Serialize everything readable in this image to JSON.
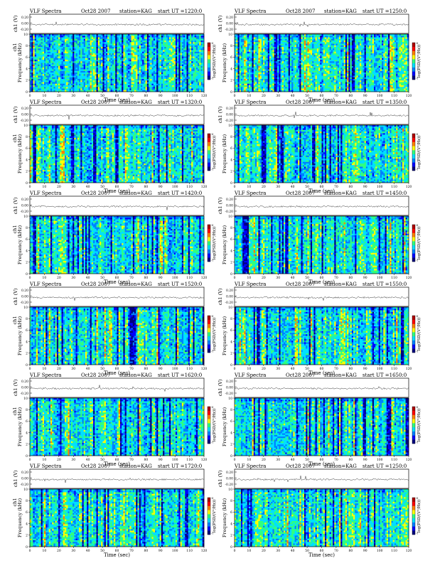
{
  "chart_data": [
    {
      "type": "heatmap",
      "title_prefix": "VLF Spectra",
      "date": "Oct28 2007",
      "station": "station=KAG",
      "start": "start  UT  =1220:0",
      "ch_label": "ch1 (V)",
      "ch_ticks": [
        "0.20",
        "0.00",
        "-0.20"
      ],
      "ylabel": "Frequency (kHz)",
      "ylabel_prefix": "ch1",
      "xlabel": "Time (sec)",
      "x_ticks": [
        "0",
        "10",
        "20",
        "30",
        "40",
        "50",
        "60",
        "70",
        "80",
        "90",
        "100",
        "110",
        "120"
      ],
      "y_ticks": [
        "0",
        "2",
        "4",
        "6",
        "8",
        "10"
      ],
      "xlim": [
        0,
        120
      ],
      "ylim": [
        0,
        10
      ],
      "colorbar_label": "log(PSD/(V²/Hz))",
      "colorbar_ticks": [
        "-6",
        "-7"
      ],
      "colormap": [
        "#00007f",
        "#0000ff",
        "#0080ff",
        "#00e0ff",
        "#30ff80",
        "#ffff00",
        "#ff8000",
        "#ff0000",
        "#b00000"
      ]
    },
    {
      "type": "heatmap",
      "title_prefix": "VLF Spectra",
      "date": "Oct28 2007",
      "station": "station=KAG",
      "start": "start  UT  =1250:0",
      "ch_label": "ch1 (V)",
      "ch_ticks": [
        "0.20",
        "0.00",
        "-0.20"
      ],
      "ylabel": "Frequency (kHz)",
      "ylabel_prefix": "",
      "xlabel": "Time (sec)",
      "x_ticks": [
        "0",
        "10",
        "20",
        "30",
        "40",
        "50",
        "60",
        "70",
        "80",
        "90",
        "100",
        "110",
        "120"
      ],
      "y_ticks": [
        "0",
        "2",
        "4",
        "6",
        "8",
        "10"
      ],
      "xlim": [
        0,
        120
      ],
      "ylim": [
        0,
        10
      ],
      "colorbar_label": "log(PSD/(V²/Hz))",
      "colorbar_ticks": [
        "-6",
        "-7"
      ],
      "colormap": [
        "#00007f",
        "#0000ff",
        "#0080ff",
        "#00e0ff",
        "#30ff80",
        "#ffff00",
        "#ff8000",
        "#ff0000",
        "#b00000"
      ]
    },
    {
      "type": "heatmap",
      "title_prefix": "VLF Spectra",
      "date": "Oct28 2007",
      "station": "station=KAG",
      "start": "start  UT  =1320:0",
      "ch_label": "ch1 (V)",
      "ch_ticks": [
        "0.20",
        "0.00",
        "-0.20"
      ],
      "ylabel": "Frequency (kHz)",
      "ylabel_prefix": "ch1",
      "xlabel": "Time (sec)",
      "x_ticks": [
        "0",
        "10",
        "20",
        "30",
        "40",
        "50",
        "60",
        "70",
        "80",
        "90",
        "100",
        "110",
        "120"
      ],
      "y_ticks": [
        "0",
        "2",
        "4",
        "6",
        "8",
        "10"
      ],
      "xlim": [
        0,
        120
      ],
      "ylim": [
        0,
        10
      ],
      "colorbar_label": "log(PSD/(V²/Hz))",
      "colorbar_ticks": [
        "-6",
        "-7"
      ],
      "colormap": [
        "#00007f",
        "#0000ff",
        "#0080ff",
        "#00e0ff",
        "#30ff80",
        "#ffff00",
        "#ff8000",
        "#ff0000",
        "#b00000"
      ]
    },
    {
      "type": "heatmap",
      "title_prefix": "VLF Spectra",
      "date": "Oct28 2007",
      "station": "station=KAG",
      "start": "start  UT  =1350:0",
      "ch_label": "ch1 (V)",
      "ch_ticks": [
        "0.20",
        "0.00",
        "-0.20"
      ],
      "ylabel": "Frequency (kHz)",
      "ylabel_prefix": "",
      "xlabel": "Time (sec)",
      "x_ticks": [
        "0",
        "10",
        "20",
        "30",
        "40",
        "50",
        "60",
        "70",
        "80",
        "90",
        "100",
        "110",
        "120"
      ],
      "y_ticks": [
        "0",
        "2",
        "4",
        "6",
        "8",
        "10"
      ],
      "xlim": [
        0,
        120
      ],
      "ylim": [
        0,
        10
      ],
      "colorbar_label": "log(PSD/(V²/Hz))",
      "colorbar_ticks": [
        "-6",
        "-7"
      ],
      "colormap": [
        "#00007f",
        "#0000ff",
        "#0080ff",
        "#00e0ff",
        "#30ff80",
        "#ffff00",
        "#ff8000",
        "#ff0000",
        "#b00000"
      ]
    },
    {
      "type": "heatmap",
      "title_prefix": "VLF Spectra",
      "date": "Oct28 2007",
      "station": "station=KAG",
      "start": "start  UT  =1420:0",
      "ch_label": "ch1 (V)",
      "ch_ticks": [
        "0.20",
        "0.00",
        "-0.20"
      ],
      "ylabel": "Frequency (kHz)",
      "ylabel_prefix": "ch1",
      "xlabel": "Time (sec)",
      "x_ticks": [
        "0",
        "10",
        "20",
        "30",
        "40",
        "50",
        "60",
        "70",
        "80",
        "90",
        "100",
        "110",
        "120"
      ],
      "y_ticks": [
        "0",
        "2",
        "4",
        "6",
        "8",
        "10"
      ],
      "xlim": [
        0,
        120
      ],
      "ylim": [
        0,
        10
      ],
      "colorbar_label": "log(PSD/(V²/Hz))",
      "colorbar_ticks": [
        "-6",
        "-7"
      ],
      "colormap": [
        "#00007f",
        "#0000ff",
        "#0080ff",
        "#00e0ff",
        "#30ff80",
        "#ffff00",
        "#ff8000",
        "#ff0000",
        "#b00000"
      ]
    },
    {
      "type": "heatmap",
      "title_prefix": "VLF Spectra",
      "date": "Oct28 2007",
      "station": "station=KAG",
      "start": "start  UT  =1450:0",
      "ch_label": "ch1 (V)",
      "ch_ticks": [
        "0.20",
        "0.00",
        "-0.20"
      ],
      "ylabel": "Frequency (kHz)",
      "ylabel_prefix": "",
      "xlabel": "Time (sec)",
      "x_ticks": [
        "0",
        "10",
        "20",
        "30",
        "40",
        "50",
        "60",
        "70",
        "80",
        "90",
        "100",
        "110",
        "120"
      ],
      "y_ticks": [
        "0",
        "2",
        "4",
        "6",
        "8",
        "10"
      ],
      "xlim": [
        0,
        120
      ],
      "ylim": [
        0,
        10
      ],
      "colorbar_label": "log(PSD/(V²/Hz))",
      "colorbar_ticks": [
        "-6",
        "-7"
      ],
      "colormap": [
        "#00007f",
        "#0000ff",
        "#0080ff",
        "#00e0ff",
        "#30ff80",
        "#ffff00",
        "#ff8000",
        "#ff0000",
        "#b00000"
      ]
    },
    {
      "type": "heatmap",
      "title_prefix": "VLF Spectra",
      "date": "Oct28 2007",
      "station": "station=KAG",
      "start": "start  UT  =1520:0",
      "ch_label": "ch1 (V)",
      "ch_ticks": [
        "0.20",
        "0.00",
        "-0.20"
      ],
      "ylabel": "Frequency (kHz)",
      "ylabel_prefix": "ch1",
      "xlabel": "Time (sec)",
      "x_ticks": [
        "0",
        "10",
        "20",
        "30",
        "40",
        "50",
        "60",
        "70",
        "80",
        "90",
        "100",
        "110",
        "120"
      ],
      "y_ticks": [
        "0",
        "2",
        "4",
        "6",
        "8",
        "10"
      ],
      "xlim": [
        0,
        120
      ],
      "ylim": [
        0,
        10
      ],
      "colorbar_label": "log(PSD/(V²/Hz))",
      "colorbar_ticks": [
        "-6",
        "-7"
      ],
      "colormap": [
        "#00007f",
        "#0000ff",
        "#0080ff",
        "#00e0ff",
        "#30ff80",
        "#ffff00",
        "#ff8000",
        "#ff0000",
        "#b00000"
      ]
    },
    {
      "type": "heatmap",
      "title_prefix": "VLF Spectra",
      "date": "Oct28 2007",
      "station": "station=KAG",
      "start": "start  UT  =1550:0",
      "ch_label": "ch1 (V)",
      "ch_ticks": [
        "0.20",
        "0.00",
        "-0.20"
      ],
      "ylabel": "Frequency (kHz)",
      "ylabel_prefix": "",
      "xlabel": "Time (sec)",
      "x_ticks": [
        "0",
        "10",
        "20",
        "30",
        "40",
        "50",
        "60",
        "70",
        "80",
        "90",
        "100",
        "110",
        "120"
      ],
      "y_ticks": [
        "0",
        "2",
        "4",
        "6",
        "8",
        "10"
      ],
      "xlim": [
        0,
        120
      ],
      "ylim": [
        0,
        10
      ],
      "colorbar_label": "log(PSD/(V²/Hz))",
      "colorbar_ticks": [
        "-6",
        "-7"
      ],
      "colormap": [
        "#00007f",
        "#0000ff",
        "#0080ff",
        "#00e0ff",
        "#30ff80",
        "#ffff00",
        "#ff8000",
        "#ff0000",
        "#b00000"
      ]
    },
    {
      "type": "heatmap",
      "title_prefix": "VLF Spectra",
      "date": "Oct28 2007",
      "station": "station=KAG",
      "start": "start  UT  =1620:0",
      "ch_label": "ch1 (V)",
      "ch_ticks": [
        "0.20",
        "0.00",
        "-0.20"
      ],
      "ylabel": "Frequency (kHz)",
      "ylabel_prefix": "ch1",
      "xlabel": "Time (sec)",
      "x_ticks": [
        "0",
        "10",
        "20",
        "30",
        "40",
        "50",
        "60",
        "70",
        "80",
        "90",
        "100",
        "110",
        "120"
      ],
      "y_ticks": [
        "0",
        "2",
        "4",
        "6",
        "8",
        "10"
      ],
      "xlim": [
        0,
        120
      ],
      "ylim": [
        0,
        10
      ],
      "colorbar_label": "log(PSD/(V²/Hz))",
      "colorbar_ticks": [
        "-6",
        "-7"
      ],
      "colormap": [
        "#00007f",
        "#0000ff",
        "#0080ff",
        "#00e0ff",
        "#30ff80",
        "#ffff00",
        "#ff8000",
        "#ff0000",
        "#b00000"
      ]
    },
    {
      "type": "heatmap",
      "title_prefix": "VLF Spectra",
      "date": "Oct28 2007",
      "station": "station=KAG",
      "start": "start  UT  =1650:0",
      "ch_label": "ch1 (V)",
      "ch_ticks": [
        "0.20",
        "0.00",
        "-0.20"
      ],
      "ylabel": "Frequency (kHz)",
      "ylabel_prefix": "",
      "xlabel": "Time (sec)",
      "x_ticks": [
        "0",
        "10",
        "20",
        "30",
        "40",
        "50",
        "60",
        "70",
        "80",
        "90",
        "100",
        "110",
        "120"
      ],
      "y_ticks": [
        "0",
        "2",
        "4",
        "6",
        "8",
        "10"
      ],
      "xlim": [
        0,
        120
      ],
      "ylim": [
        0,
        10
      ],
      "colorbar_label": "log(PSD/(V²/Hz))",
      "colorbar_ticks": [
        "-6",
        "-7"
      ],
      "colormap": [
        "#00007f",
        "#0000ff",
        "#0080ff",
        "#00e0ff",
        "#30ff80",
        "#ffff00",
        "#ff8000",
        "#ff0000",
        "#b00000"
      ]
    },
    {
      "type": "heatmap",
      "title_prefix": "VLF Spectra",
      "date": "Oct28 2007",
      "station": "station=KAG",
      "start": "start  UT  =1720:0",
      "ch_label": "ch1 (V)",
      "ch_ticks": [
        "0.20",
        "0.00",
        "-0.20"
      ],
      "ylabel": "Frequency (kHz)",
      "ylabel_prefix": "ch1",
      "xlabel": "Time (sec)",
      "x_ticks": [
        "0",
        "10",
        "20",
        "30",
        "40",
        "50",
        "60",
        "70",
        "80",
        "90",
        "100",
        "110",
        "120"
      ],
      "y_ticks": [
        "0",
        "2",
        "4",
        "6",
        "8",
        "10"
      ],
      "xlim": [
        0,
        120
      ],
      "ylim": [
        0,
        10
      ],
      "colorbar_label": "log(PSD/(V²/Hz))",
      "colorbar_ticks": [
        "-6",
        "-7"
      ],
      "colormap": [
        "#00007f",
        "#0000ff",
        "#0080ff",
        "#00e0ff",
        "#30ff80",
        "#ffff00",
        "#ff8000",
        "#ff0000",
        "#b00000"
      ]
    },
    {
      "type": "heatmap",
      "title_prefix": "VLF Spectra",
      "date": "Oct28 2007",
      "station": "station=KAG",
      "start": "start  UT  =1250:0",
      "ch_label": "ch1 (V)",
      "ch_ticks": [
        "0.20",
        "0.00",
        "-0.20"
      ],
      "ylabel": "Frequency (kHz)",
      "ylabel_prefix": "",
      "xlabel": "Time (sec)",
      "x_ticks": [
        "0",
        "10",
        "20",
        "30",
        "40",
        "50",
        "60",
        "70",
        "80",
        "90",
        "100",
        "110",
        "120"
      ],
      "y_ticks": [
        "0",
        "2",
        "4",
        "6",
        "8",
        "10"
      ],
      "xlim": [
        0,
        120
      ],
      "ylim": [
        0,
        10
      ],
      "colorbar_label": "log(PSD/(V²/Hz))",
      "colorbar_ticks": [
        "-6",
        "-7"
      ],
      "colormap": [
        "#00007f",
        "#0000ff",
        "#0080ff",
        "#00e0ff",
        "#30ff80",
        "#ffff00",
        "#ff8000",
        "#ff0000",
        "#b00000"
      ]
    }
  ]
}
